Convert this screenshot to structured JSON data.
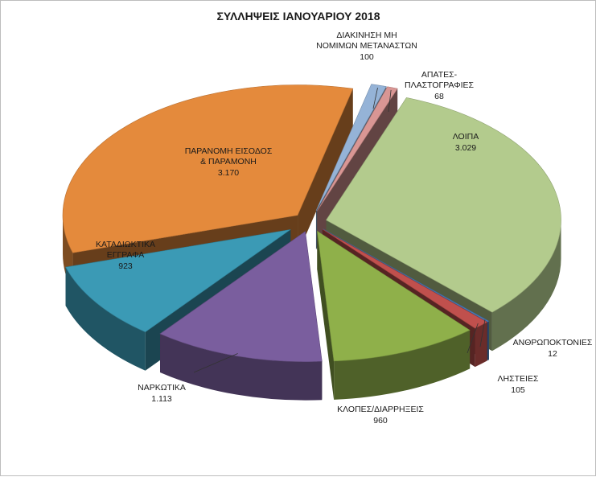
{
  "chart_data": {
    "type": "pie",
    "title": "ΣΥΛΛΗΨΕΙΣ  ΙΑΝΟΥΑΡΙΟΥ 2018",
    "slices": [
      {
        "name": "ΛΟΙΠΑ",
        "value_label": "3.029",
        "value": 3029,
        "color": "#b3cb8d"
      },
      {
        "name": "ΑΝΘΡΩΠΟΚΤΟΝΙΕΣ",
        "value_label": "12",
        "value": 12,
        "color": "#4a7ebb"
      },
      {
        "name": "ΛΗΣΤΕΙΕΣ",
        "value_label": "105",
        "value": 105,
        "color": "#c0504d"
      },
      {
        "name": "ΚΛΟΠΕΣ/ΔΙΑΡΡΗΞΕΙΣ",
        "value_label": "960",
        "value": 960,
        "color": "#8fb04a"
      },
      {
        "name": "ΝΑΡΚΩΤΙΚΑ",
        "value_label": "1.113",
        "value": 1113,
        "color": "#7a5e9e"
      },
      {
        "name": "ΚΑΤΑΔΙΩΚΤΙΚΑ ΕΓΓΡΑΦΑ",
        "value_label": "923",
        "value": 923,
        "color": "#3b9ab5"
      },
      {
        "name": "ΠΑΡΑΝΟΜΗ ΕΙΣΟΔΟΣ & ΠΑΡΑΜΟΝΗ",
        "value_label": "3.170",
        "value": 3170,
        "color": "#e48a3c"
      },
      {
        "name": "ΔΙΑΚΙΝΗΣΗ ΜΗ ΝΟΜΙΜΩΝ ΜΕΤΑΝΑΣΤΩΝ",
        "value_label": "100",
        "value": 100,
        "color": "#95b3d7"
      },
      {
        "name": "ΑΠΑΤΕΣ- ΠΛΑΣΤΟΓΡΑΦΙΕΣ",
        "value_label": "68",
        "value": 68,
        "color": "#d99694"
      }
    ],
    "exploded": true,
    "three_d": true,
    "legend": "none"
  }
}
